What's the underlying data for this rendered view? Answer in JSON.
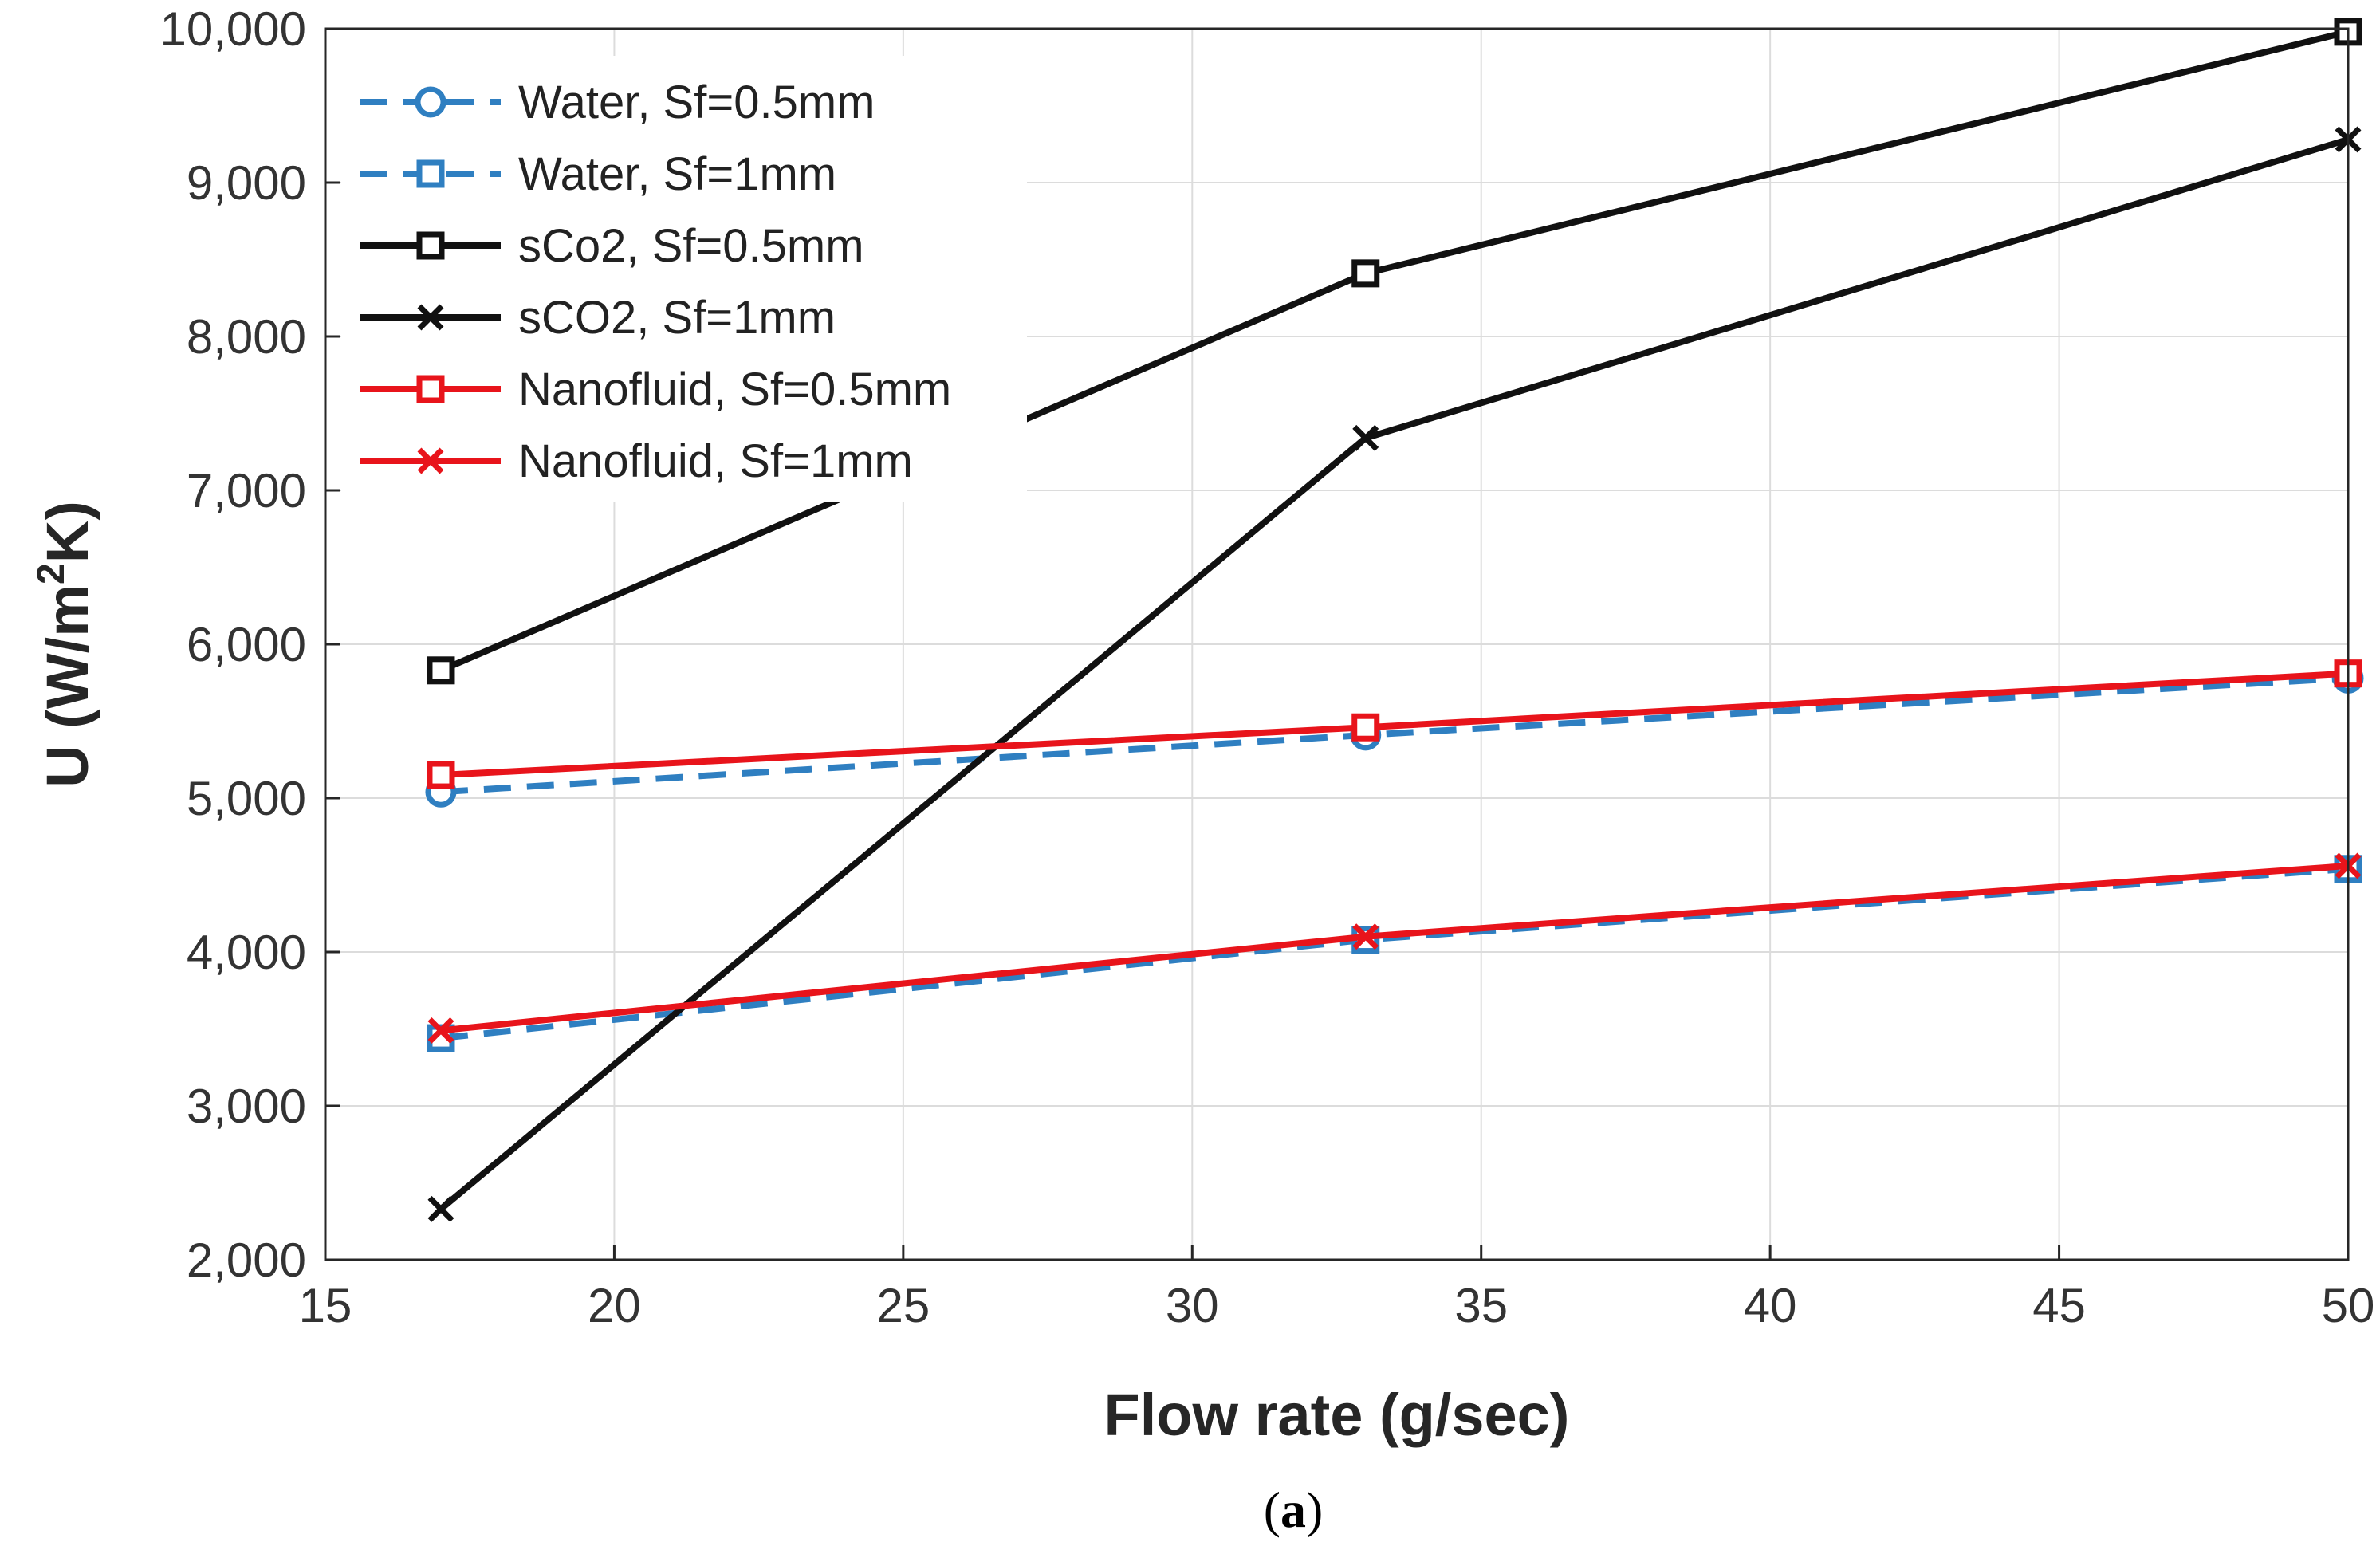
{
  "chart_data": {
    "type": "line",
    "xlabel": "Flow rate (g/sec)",
    "ylabel": {
      "prefix": "U (W/m",
      "sup": "2",
      "suffix": "K)"
    },
    "xlim": [
      15,
      50
    ],
    "ylim": [
      2000,
      10000
    ],
    "x_ticks": [
      15,
      20,
      25,
      30,
      35,
      40,
      45,
      50
    ],
    "x_tick_labels": [
      "15",
      "20",
      "25",
      "30",
      "35",
      "40",
      "45",
      "50"
    ],
    "y_ticks": [
      2000,
      3000,
      4000,
      5000,
      6000,
      7000,
      8000,
      9000,
      10000
    ],
    "y_tick_labels": [
      "2,000",
      "3,000",
      "4,000",
      "5,000",
      "6,000",
      "7,000",
      "8,000",
      "9,000",
      "10,000"
    ],
    "grid": true,
    "legend_position": "top-left",
    "x": [
      17,
      33,
      50
    ],
    "series": [
      {
        "name": "Water, Sf=0.5mm",
        "values": [
          5040,
          5410,
          5780
        ],
        "color": "#2f7fc1",
        "line": "dashed",
        "marker": "circle-open"
      },
      {
        "name": "Water, Sf=1mm",
        "values": [
          3440,
          4080,
          4540
        ],
        "color": "#2f7fc1",
        "line": "dashed",
        "marker": "square-open"
      },
      {
        "name": "sCo2, Sf=0.5mm",
        "values": [
          5830,
          8410,
          9980
        ],
        "color": "#111111",
        "line": "solid",
        "marker": "square-open"
      },
      {
        "name": "sCO2, Sf=1mm",
        "values": [
          2330,
          7340,
          9280
        ],
        "color": "#111111",
        "line": "solid",
        "marker": "x"
      },
      {
        "name": "Nanofluid, Sf=0.5mm",
        "values": [
          5150,
          5460,
          5810
        ],
        "color": "#e8141b",
        "line": "solid",
        "marker": "square-open"
      },
      {
        "name": "Nanofluid, Sf=1mm",
        "values": [
          3490,
          4100,
          4560
        ],
        "color": "#e8141b",
        "line": "solid",
        "marker": "x"
      }
    ]
  },
  "caption": {
    "open": "(",
    "letter": "a",
    "close": ")"
  }
}
